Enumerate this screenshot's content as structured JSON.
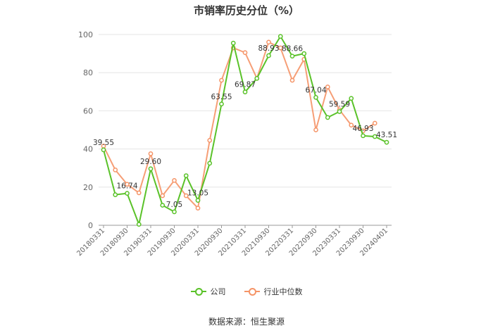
{
  "chart_data": {
    "type": "line",
    "title": "市销率历史分位（%）",
    "source": "数据来源：恒生聚源",
    "ylim": [
      0,
      100
    ],
    "yticks": [
      "0",
      "20",
      "40",
      "60",
      "80",
      "100"
    ],
    "xticks": [
      "20180331",
      "20180930",
      "20190331",
      "20190930",
      "20200331",
      "20200930",
      "20210331",
      "20210930",
      "20220331",
      "20220930",
      "20230331",
      "20230930",
      "20240401"
    ],
    "grid": true,
    "legend_position": "bottom-center",
    "colors": {
      "company": "#5ac229",
      "industry": "#f59467"
    },
    "series": [
      {
        "name": "公司",
        "values": [
          39.55,
          16,
          16.74,
          0.5,
          29.6,
          10.5,
          7.05,
          26,
          13.05,
          32.5,
          63.55,
          95.5,
          69.87,
          77,
          88.93,
          99,
          88.66,
          90,
          67.04,
          56.5,
          59.59,
          66.5,
          46.93,
          46.5,
          43.51
        ],
        "labels": [
          "39.55",
          "",
          "16.74",
          "",
          "29.60",
          "",
          "7.05",
          "",
          "13.05",
          "",
          "63.55",
          "",
          "69.87",
          "",
          "88.93",
          "",
          "88.66",
          "",
          "67.04",
          "",
          "59.59",
          "",
          "46.93",
          "",
          "43.51"
        ]
      },
      {
        "name": "行业中位数",
        "values": [
          41.5,
          29,
          21.5,
          17,
          37.5,
          15.5,
          23.5,
          15.5,
          9,
          44.5,
          76,
          93,
          90.5,
          77,
          96,
          93,
          76,
          87,
          50,
          72.5,
          60.5,
          52.5,
          49.5,
          53.5,
          null
        ]
      }
    ]
  }
}
